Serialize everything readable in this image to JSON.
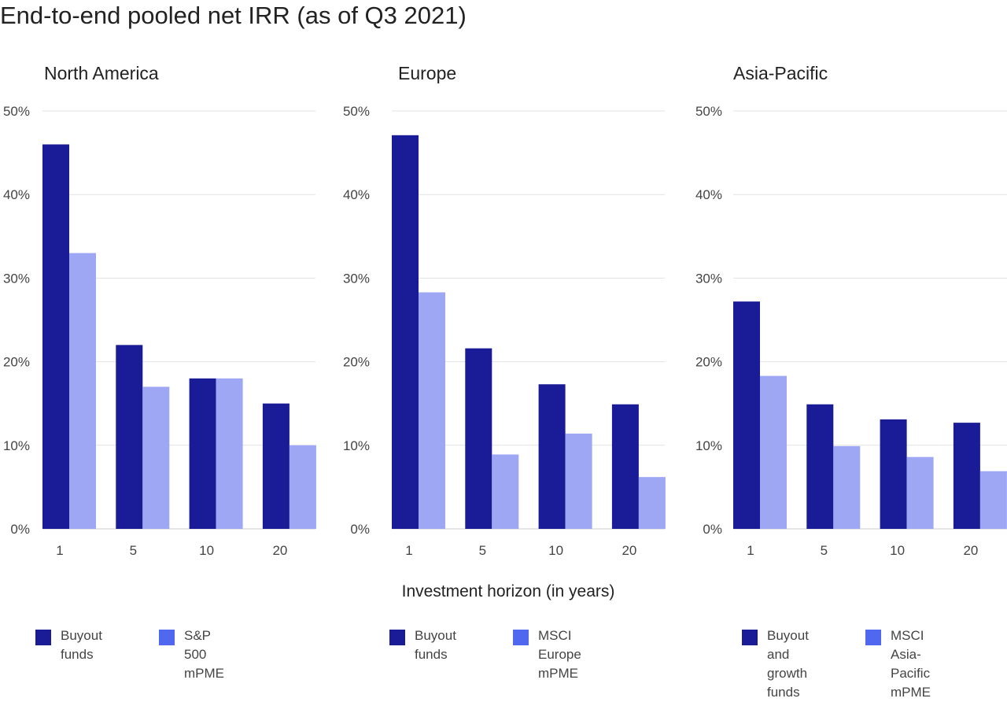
{
  "title": "End-to-end pooled net IRR (as of Q3 2021)",
  "xlabel": "Investment horizon (in years)",
  "colors": {
    "buyout": "#191c96",
    "benchmark": "#9da7f4",
    "benchmark_legend": "#5068f0",
    "grid": "#e2e2e2",
    "text": "#222222",
    "tick": "#444444"
  },
  "chart_data": [
    {
      "type": "bar",
      "title": "North America",
      "categories": [
        "1",
        "5",
        "10",
        "20"
      ],
      "ylim": [
        0,
        50
      ],
      "yticks": [
        "0%",
        "10%",
        "20%",
        "30%",
        "40%",
        "50%"
      ],
      "series": [
        {
          "name": "Buyout\nfunds",
          "values": [
            46,
            22,
            18,
            15
          ]
        },
        {
          "name": "S&P 500\nmPME",
          "values": [
            33,
            17,
            18,
            10
          ]
        }
      ]
    },
    {
      "type": "bar",
      "title": "Europe",
      "categories": [
        "1",
        "5",
        "10",
        "20"
      ],
      "ylim": [
        0,
        50
      ],
      "yticks": [
        "0%",
        "10%",
        "20%",
        "30%",
        "40%",
        "50%"
      ],
      "series": [
        {
          "name": "Buyout\nfunds",
          "values": [
            47.1,
            21.6,
            17.3,
            14.9
          ]
        },
        {
          "name": "MSCI Europe\nmPME",
          "values": [
            28.3,
            8.9,
            11.4,
            6.2
          ]
        }
      ]
    },
    {
      "type": "bar",
      "title": "Asia-Pacific",
      "categories": [
        "1",
        "5",
        "10",
        "20"
      ],
      "ylim": [
        0,
        50
      ],
      "yticks": [
        "0%",
        "10%",
        "20%",
        "30%",
        "40%",
        "50%"
      ],
      "series": [
        {
          "name": "Buyout and\ngrowth funds",
          "values": [
            27.2,
            14.9,
            13.1,
            12.7
          ]
        },
        {
          "name": "MSCI Asia-Pacific\nmPME",
          "values": [
            18.3,
            9.9,
            8.6,
            6.9
          ]
        }
      ]
    }
  ]
}
